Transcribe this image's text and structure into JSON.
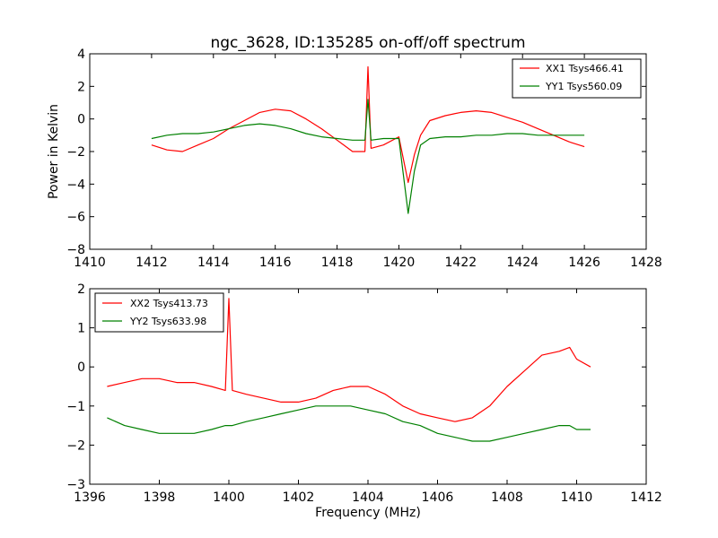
{
  "figure": {
    "background": "#ffffff"
  },
  "chart_data": [
    {
      "type": "line",
      "title": "ngc_3628, ID:135285 on-off/off spectrum",
      "xlabel": "",
      "ylabel": "Power in Kelvin",
      "xlim": [
        1410,
        1428
      ],
      "ylim": [
        -8,
        4
      ],
      "xticks": [
        1410,
        1412,
        1414,
        1416,
        1418,
        1420,
        1422,
        1424,
        1426,
        1428
      ],
      "yticks": [
        -8,
        -6,
        -4,
        -2,
        0,
        2,
        4
      ],
      "legend_position": "upper-right",
      "grid": false,
      "series": [
        {
          "name": "XX1 Tsys466.41",
          "color": "#ff0000",
          "x": [
            1412,
            1412.5,
            1413,
            1413.5,
            1414,
            1414.5,
            1415,
            1415.5,
            1416,
            1416.5,
            1417,
            1417.5,
            1418,
            1418.5,
            1418.9,
            1419,
            1419.1,
            1419.5,
            1420,
            1420.3,
            1420.5,
            1420.7,
            1421,
            1421.5,
            1422,
            1422.5,
            1423,
            1423.5,
            1424,
            1424.5,
            1425,
            1425.5,
            1426
          ],
          "y": [
            -1.6,
            -1.9,
            -2.0,
            -1.6,
            -1.2,
            -0.6,
            -0.1,
            0.4,
            0.6,
            0.5,
            0.0,
            -0.6,
            -1.3,
            -2.0,
            -2.0,
            3.2,
            -1.8,
            -1.6,
            -1.1,
            -3.9,
            -2.2,
            -1.0,
            -0.1,
            0.2,
            0.4,
            0.5,
            0.4,
            0.1,
            -0.2,
            -0.6,
            -1.0,
            -1.4,
            -1.7
          ]
        },
        {
          "name": "YY1 Tsys560.09",
          "color": "#008000",
          "x": [
            1412,
            1412.5,
            1413,
            1413.5,
            1414,
            1414.5,
            1415,
            1415.5,
            1416,
            1416.5,
            1417,
            1417.5,
            1418,
            1418.5,
            1418.9,
            1419,
            1419.1,
            1419.5,
            1420,
            1420.3,
            1420.5,
            1420.7,
            1421,
            1421.5,
            1422,
            1422.5,
            1423,
            1423.5,
            1424,
            1424.5,
            1425,
            1425.5,
            1426
          ],
          "y": [
            -1.2,
            -1.0,
            -0.9,
            -0.9,
            -0.8,
            -0.6,
            -0.4,
            -0.3,
            -0.4,
            -0.6,
            -0.9,
            -1.1,
            -1.2,
            -1.3,
            -1.3,
            1.2,
            -1.3,
            -1.2,
            -1.2,
            -5.8,
            -3.2,
            -1.6,
            -1.2,
            -1.1,
            -1.1,
            -1.0,
            -1.0,
            -0.9,
            -0.9,
            -1.0,
            -1.0,
            -1.0,
            -1.0
          ]
        }
      ]
    },
    {
      "type": "line",
      "title": "",
      "xlabel": "Frequency (MHz)",
      "ylabel": "",
      "xlim": [
        1396,
        1412
      ],
      "ylim": [
        -3,
        2
      ],
      "xticks": [
        1396,
        1398,
        1400,
        1402,
        1404,
        1406,
        1408,
        1410,
        1412
      ],
      "yticks": [
        -3,
        -2,
        -1,
        0,
        1,
        2
      ],
      "legend_position": "upper-left",
      "grid": false,
      "series": [
        {
          "name": "XX2 Tsys413.73",
          "color": "#ff0000",
          "x": [
            1396.5,
            1397,
            1397.5,
            1398,
            1398.5,
            1399,
            1399.5,
            1399.9,
            1400,
            1400.1,
            1400.5,
            1401,
            1401.5,
            1402,
            1402.5,
            1403,
            1403.5,
            1404,
            1404.5,
            1405,
            1405.5,
            1406,
            1406.5,
            1407,
            1407.5,
            1408,
            1408.5,
            1409,
            1409.5,
            1409.8,
            1410,
            1410.4
          ],
          "y": [
            -0.5,
            -0.4,
            -0.3,
            -0.3,
            -0.4,
            -0.4,
            -0.5,
            -0.6,
            1.75,
            -0.6,
            -0.7,
            -0.8,
            -0.9,
            -0.9,
            -0.8,
            -0.6,
            -0.5,
            -0.5,
            -0.7,
            -1.0,
            -1.2,
            -1.3,
            -1.4,
            -1.3,
            -1.0,
            -0.5,
            -0.1,
            0.3,
            0.4,
            0.5,
            0.2,
            0.0
          ]
        },
        {
          "name": "YY2 Tsys633.98",
          "color": "#008000",
          "x": [
            1396.5,
            1397,
            1397.5,
            1398,
            1398.5,
            1399,
            1399.5,
            1399.9,
            1400,
            1400.1,
            1400.5,
            1401,
            1401.5,
            1402,
            1402.5,
            1403,
            1403.5,
            1404,
            1404.5,
            1405,
            1405.5,
            1406,
            1406.5,
            1407,
            1407.5,
            1408,
            1408.5,
            1409,
            1409.5,
            1409.8,
            1410,
            1410.4
          ],
          "y": [
            -1.3,
            -1.5,
            -1.6,
            -1.7,
            -1.7,
            -1.7,
            -1.6,
            -1.5,
            -1.5,
            -1.5,
            -1.4,
            -1.3,
            -1.2,
            -1.1,
            -1.0,
            -1.0,
            -1.0,
            -1.1,
            -1.2,
            -1.4,
            -1.5,
            -1.7,
            -1.8,
            -1.9,
            -1.9,
            -1.8,
            -1.7,
            -1.6,
            -1.5,
            -1.5,
            -1.6,
            -1.6
          ]
        }
      ]
    }
  ]
}
